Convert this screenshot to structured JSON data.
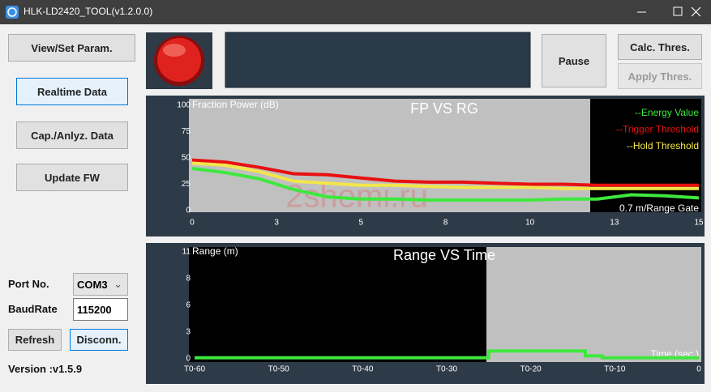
{
  "window": {
    "title": "HLK-LD2420_TOOL(v1.2.0.0)"
  },
  "nav": {
    "view_set_param": "View/Set Param.",
    "realtime_data": "Realtime Data",
    "cap_anlyz_data": "Cap./Anlyz. Data",
    "update_fw": "Update FW"
  },
  "controls": {
    "pause": "Pause",
    "calc_thres": "Calc. Thres.",
    "apply_thres": "Apply Thres."
  },
  "connection": {
    "port_label": "Port No.",
    "port": "COM3",
    "baud_label": "BaudRate",
    "baud": "115200",
    "refresh": "Refresh",
    "disconnect": "Disconn.",
    "version": "Version :v1.5.9"
  },
  "watermark": "2shemi.ru",
  "chart_data": [
    {
      "type": "line",
      "title": "FP VS RG",
      "y_label": "Fraction Power (dB)",
      "x_label": "0.7 m/Range Gate",
      "x": [
        0,
        1,
        2,
        3,
        4,
        5,
        6,
        7,
        8,
        9,
        10,
        11,
        12,
        13,
        14,
        15
      ],
      "series": [
        {
          "name": "--Energy Value",
          "color": "#3ee83e",
          "values": [
            40,
            36,
            30,
            20,
            13,
            11,
            11,
            10,
            10,
            10,
            10,
            11,
            11,
            15,
            14,
            12
          ]
        },
        {
          "name": "--Trigger Threshold",
          "color": "#e81010",
          "values": [
            48,
            46,
            41,
            35,
            34,
            31,
            28,
            27,
            27,
            26,
            25,
            25,
            24,
            24,
            24,
            24
          ]
        },
        {
          "name": "--Hold Threshold",
          "color": "#f2e64a",
          "values": [
            45,
            43,
            37,
            28,
            26,
            24,
            24,
            23,
            22,
            22,
            22,
            21,
            21,
            21,
            21,
            21
          ]
        }
      ],
      "xlim": [
        0,
        15
      ],
      "xticks": [
        0,
        {
          "value": 2.5,
          "label": "3"
        },
        5,
        {
          "value": 7.5,
          "label": "8"
        },
        10,
        {
          "value": 12.5,
          "label": "13"
        },
        15
      ],
      "ylim": [
        0,
        100
      ],
      "yticks": [
        0,
        25,
        50,
        75,
        100
      ],
      "legend": "upper right"
    },
    {
      "type": "line",
      "title": "Range VS Time",
      "y_label": "Range (m)",
      "x_label": "Time (sec.)",
      "x": [
        -60,
        -25,
        -25,
        -13.5,
        -13.5,
        -11.5,
        -11.5,
        0
      ],
      "series": [
        {
          "color": "#3ee83e",
          "values": [
            0.1,
            0.1,
            0.8,
            0.8,
            0.3,
            0.3,
            0.1,
            0.1
          ]
        }
      ],
      "xlim": [
        -60,
        0
      ],
      "xticks": [
        {
          "value": -60,
          "label": "T0-60"
        },
        {
          "value": -50,
          "label": "T0-50"
        },
        {
          "value": -40,
          "label": "T0-40"
        },
        {
          "value": -30,
          "label": "T0-30"
        },
        {
          "value": -20,
          "label": "T0-20"
        },
        {
          "value": -10,
          "label": "T0-10"
        },
        0
      ],
      "ylim": [
        0,
        11
      ],
      "yticks": [
        0,
        {
          "value": 2.75,
          "label": "3"
        },
        {
          "value": 5.5,
          "label": "6"
        },
        {
          "value": 8.25,
          "label": "8"
        },
        11
      ]
    }
  ]
}
